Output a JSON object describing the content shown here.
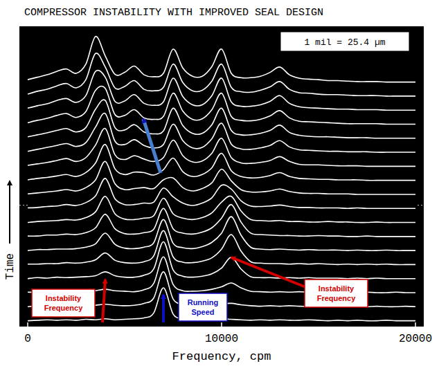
{
  "chart_data": {
    "type": "waterfall",
    "title": "COMPRESSOR INSTABILITY WITH IMPROVED SEAL DESIGN",
    "scale_label": "1 mil = 25.4 µm",
    "xlabel": "Frequency, cpm",
    "ylabel": "Time",
    "xlim": [
      0,
      20000
    ],
    "xticks": [
      0,
      10000,
      20000
    ],
    "ylim": [
      0,
      10
    ],
    "tick_labels": "x",
    "grid": false,
    "color": "#ffffff",
    "annotations": [
      {
        "text": "Instability Frequency",
        "x": 4000,
        "color": "#d40000"
      },
      {
        "text": "Running Speed",
        "x": 7000,
        "color": "#1010c8"
      },
      {
        "text": "Instability Frequency",
        "x": 10500,
        "color": "#d40000"
      }
    ],
    "x": [
      0,
      500,
      1000,
      1500,
      2000,
      2500,
      3000,
      3500,
      4000,
      4500,
      5000,
      5500,
      6000,
      6500,
      7000,
      7500,
      8000,
      8500,
      9000,
      9500,
      10000,
      10500,
      11000,
      11500,
      12000,
      12500,
      13000,
      13500,
      14000,
      14500,
      15000,
      15500,
      16000,
      16500,
      17000,
      17500,
      18000,
      18500,
      19000,
      19500,
      20000
    ],
    "series": [
      {
        "values": [
          0.2,
          0.3,
          0.4,
          0.3,
          0.4,
          0.3,
          0.5,
          0.4,
          0.6,
          0.4,
          0.5,
          0.6,
          0.8,
          1.8,
          7.0,
          1.6,
          0.6,
          0.4,
          0.5,
          0.4,
          0.6,
          0.5,
          0.4,
          0.3,
          0.4,
          0.3,
          0.4,
          0.3,
          0.3,
          0.4,
          0.3,
          0.2,
          0.3,
          0.2,
          0.3,
          0.2,
          0.2,
          0.3,
          0.2,
          0.2,
          0.2
        ]
      },
      {
        "values": [
          0.2,
          0.4,
          0.3,
          0.5,
          0.4,
          0.4,
          0.3,
          0.5,
          0.7,
          0.5,
          0.4,
          0.5,
          0.9,
          2.0,
          7.4,
          1.8,
          0.7,
          0.5,
          0.4,
          0.6,
          0.8,
          0.9,
          0.6,
          0.4,
          0.3,
          0.4,
          0.3,
          0.4,
          0.3,
          0.3,
          0.4,
          0.3,
          0.2,
          0.3,
          0.3,
          0.2,
          0.3,
          0.2,
          0.2,
          0.3,
          0.2
        ]
      },
      {
        "values": [
          0.3,
          0.3,
          0.4,
          0.4,
          0.5,
          0.3,
          0.4,
          0.6,
          0.9,
          0.6,
          0.5,
          0.4,
          0.8,
          2.1,
          7.6,
          1.9,
          0.6,
          0.5,
          0.6,
          0.9,
          1.4,
          2.2,
          1.2,
          0.5,
          0.4,
          0.3,
          0.4,
          0.3,
          0.4,
          0.3,
          0.3,
          0.3,
          0.2,
          0.3,
          0.2,
          0.3,
          0.2,
          0.2,
          0.3,
          0.2,
          0.2
        ]
      },
      {
        "values": [
          0.2,
          0.4,
          0.3,
          0.5,
          0.4,
          0.5,
          0.6,
          0.8,
          1.6,
          0.8,
          0.5,
          0.5,
          0.9,
          2.2,
          7.8,
          2.0,
          0.7,
          0.5,
          0.7,
          1.2,
          2.4,
          4.6,
          2.2,
          0.6,
          0.4,
          0.4,
          0.3,
          0.4,
          0.3,
          0.4,
          0.3,
          0.3,
          0.3,
          0.2,
          0.3,
          0.2,
          0.3,
          0.2,
          0.2,
          0.2,
          0.2
        ]
      },
      {
        "values": [
          0.3,
          0.3,
          0.4,
          0.4,
          0.6,
          0.5,
          0.7,
          1.2,
          2.6,
          1.1,
          0.6,
          0.5,
          0.8,
          2.0,
          7.2,
          1.8,
          0.7,
          0.6,
          0.9,
          1.6,
          3.4,
          6.4,
          3.0,
          0.8,
          0.5,
          0.4,
          0.4,
          0.3,
          0.4,
          0.3,
          0.4,
          0.3,
          0.2,
          0.3,
          0.2,
          0.3,
          0.2,
          0.3,
          0.2,
          0.2,
          0.2
        ]
      },
      {
        "values": [
          0.2,
          0.4,
          0.4,
          0.5,
          0.5,
          0.6,
          0.9,
          1.6,
          3.8,
          1.5,
          0.7,
          0.6,
          0.9,
          1.8,
          6.6,
          1.7,
          0.8,
          0.6,
          1.0,
          1.9,
          3.8,
          7.2,
          3.4,
          0.9,
          0.5,
          0.4,
          0.5,
          0.4,
          0.3,
          0.4,
          0.3,
          0.3,
          0.3,
          0.2,
          0.3,
          0.2,
          0.2,
          0.3,
          0.2,
          0.2,
          0.2
        ]
      },
      {
        "values": [
          0.3,
          0.3,
          0.5,
          0.5,
          0.7,
          0.6,
          1.0,
          2.0,
          4.8,
          1.8,
          0.8,
          0.7,
          1.0,
          1.7,
          6.0,
          1.8,
          0.9,
          0.7,
          1.1,
          2.0,
          4.0,
          6.8,
          3.2,
          0.9,
          0.6,
          0.5,
          0.4,
          0.4,
          0.3,
          0.3,
          0.4,
          0.3,
          0.3,
          0.2,
          0.2,
          0.3,
          0.2,
          0.2,
          0.2,
          0.2,
          0.2
        ]
      },
      {
        "values": [
          0.2,
          0.4,
          0.5,
          0.6,
          0.8,
          0.7,
          1.2,
          2.4,
          5.6,
          2.0,
          0.9,
          0.8,
          1.1,
          1.6,
          5.2,
          2.0,
          1.1,
          0.8,
          1.2,
          2.2,
          4.4,
          5.6,
          2.6,
          0.8,
          0.6,
          0.5,
          0.6,
          0.4,
          0.4,
          0.3,
          0.3,
          0.4,
          0.3,
          0.3,
          0.2,
          0.2,
          0.3,
          0.2,
          0.2,
          0.2,
          0.2
        ]
      },
      {
        "values": [
          0.3,
          0.4,
          0.6,
          0.7,
          1.0,
          0.8,
          1.4,
          2.8,
          6.4,
          2.2,
          1.0,
          1.0,
          1.3,
          1.5,
          4.4,
          2.6,
          1.3,
          0.8,
          1.3,
          2.4,
          5.0,
          4.2,
          1.8,
          0.7,
          0.6,
          0.7,
          0.9,
          0.6,
          0.4,
          0.4,
          0.3,
          0.3,
          0.3,
          0.2,
          0.3,
          0.2,
          0.2,
          0.2,
          0.2,
          0.2,
          0.2
        ]
      },
      {
        "values": [
          0.3,
          0.5,
          0.7,
          0.9,
          1.2,
          0.9,
          1.6,
          3.2,
          7.0,
          2.4,
          1.2,
          1.4,
          1.6,
          1.4,
          3.2,
          3.6,
          1.6,
          0.9,
          1.4,
          2.6,
          5.4,
          3.0,
          1.2,
          0.7,
          0.7,
          0.9,
          1.3,
          0.8,
          0.5,
          0.4,
          0.4,
          0.3,
          0.3,
          0.3,
          0.2,
          0.2,
          0.2,
          0.2,
          0.2,
          0.2,
          0.2
        ]
      },
      {
        "values": [
          0.3,
          0.6,
          0.8,
          1.1,
          1.4,
          1.0,
          1.8,
          3.8,
          7.6,
          2.6,
          1.4,
          1.9,
          1.8,
          1.3,
          2.4,
          4.8,
          2.0,
          1.0,
          1.4,
          2.8,
          5.8,
          2.2,
          1.0,
          0.7,
          0.8,
          1.2,
          1.8,
          1.0,
          0.6,
          0.5,
          0.4,
          0.4,
          0.3,
          0.3,
          0.3,
          0.2,
          0.2,
          0.2,
          0.2,
          0.2,
          0.2
        ]
      },
      {
        "values": [
          0.4,
          0.7,
          1.0,
          1.4,
          1.8,
          1.2,
          2.0,
          4.6,
          8.0,
          2.6,
          1.6,
          2.4,
          1.7,
          1.2,
          2.0,
          5.6,
          2.4,
          1.1,
          1.3,
          2.9,
          6.0,
          2.0,
          0.9,
          0.8,
          1.0,
          1.4,
          2.2,
          1.2,
          0.6,
          0.5,
          0.5,
          0.4,
          0.3,
          0.3,
          0.3,
          0.2,
          0.2,
          0.2,
          0.2,
          0.2,
          0.2
        ]
      },
      {
        "values": [
          0.4,
          0.8,
          1.2,
          1.6,
          2.0,
          1.4,
          2.2,
          5.4,
          8.2,
          2.5,
          1.8,
          2.8,
          1.6,
          1.1,
          1.8,
          6.0,
          2.6,
          1.1,
          1.2,
          3.0,
          6.2,
          1.9,
          0.9,
          0.8,
          1.1,
          1.6,
          2.6,
          1.3,
          0.7,
          0.6,
          0.5,
          0.4,
          0.4,
          0.3,
          0.3,
          0.3,
          0.2,
          0.2,
          0.2,
          0.2,
          0.2
        ]
      },
      {
        "values": [
          0.5,
          0.9,
          1.3,
          1.8,
          2.2,
          1.5,
          2.4,
          6.2,
          8.0,
          2.4,
          1.9,
          3.0,
          1.5,
          1.1,
          1.7,
          6.4,
          2.8,
          1.2,
          1.2,
          3.0,
          6.4,
          1.8,
          0.9,
          0.9,
          1.2,
          1.8,
          2.9,
          1.4,
          0.8,
          0.6,
          0.5,
          0.5,
          0.4,
          0.3,
          0.3,
          0.3,
          0.2,
          0.2,
          0.2,
          0.2,
          0.2
        ]
      },
      {
        "values": [
          0.5,
          1.0,
          1.4,
          2.0,
          2.4,
          1.6,
          2.8,
          7.2,
          7.6,
          2.2,
          2.0,
          3.2,
          1.5,
          1.2,
          1.8,
          6.6,
          2.9,
          1.2,
          1.3,
          3.2,
          6.6,
          1.8,
          1.0,
          0.9,
          1.2,
          1.9,
          3.0,
          1.5,
          0.8,
          0.7,
          0.6,
          0.5,
          0.4,
          0.3,
          0.3,
          0.3,
          0.3,
          0.2,
          0.2,
          0.2,
          0.2
        ]
      },
      {
        "values": [
          0.6,
          1.1,
          1.5,
          2.2,
          2.6,
          1.8,
          3.2,
          8.2,
          7.0,
          2.0,
          2.1,
          3.4,
          1.6,
          1.2,
          1.9,
          6.8,
          3.0,
          1.3,
          1.3,
          3.2,
          6.8,
          1.9,
          1.0,
          1.0,
          1.3,
          2.0,
          3.2,
          1.6,
          0.9,
          0.7,
          0.6,
          0.5,
          0.4,
          0.4,
          0.3,
          0.3,
          0.3,
          0.2,
          0.2,
          0.2,
          0.2
        ]
      },
      {
        "values": [
          0.6,
          1.2,
          1.6,
          2.3,
          2.8,
          1.9,
          3.6,
          9.0,
          6.2,
          1.9,
          2.2,
          3.4,
          1.6,
          1.3,
          2.0,
          6.8,
          3.0,
          1.3,
          1.4,
          3.3,
          6.8,
          2.0,
          1.1,
          1.0,
          1.4,
          2.1,
          3.2,
          1.6,
          0.9,
          0.8,
          0.6,
          0.5,
          0.5,
          0.4,
          0.3,
          0.3,
          0.3,
          0.2,
          0.2,
          0.2,
          0.2
        ]
      },
      {
        "values": [
          0.7,
          1.2,
          1.7,
          2.4,
          2.9,
          2.0,
          3.9,
          9.6,
          5.6,
          1.8,
          2.2,
          3.5,
          1.7,
          1.3,
          2.0,
          7.0,
          3.1,
          1.4,
          1.4,
          3.4,
          7.0,
          2.0,
          1.1,
          1.1,
          1.4,
          2.2,
          3.3,
          1.7,
          1.0,
          0.8,
          0.7,
          0.5,
          0.5,
          0.4,
          0.3,
          0.3,
          0.3,
          0.2,
          0.2,
          0.2,
          0.2
        ]
      }
    ]
  }
}
